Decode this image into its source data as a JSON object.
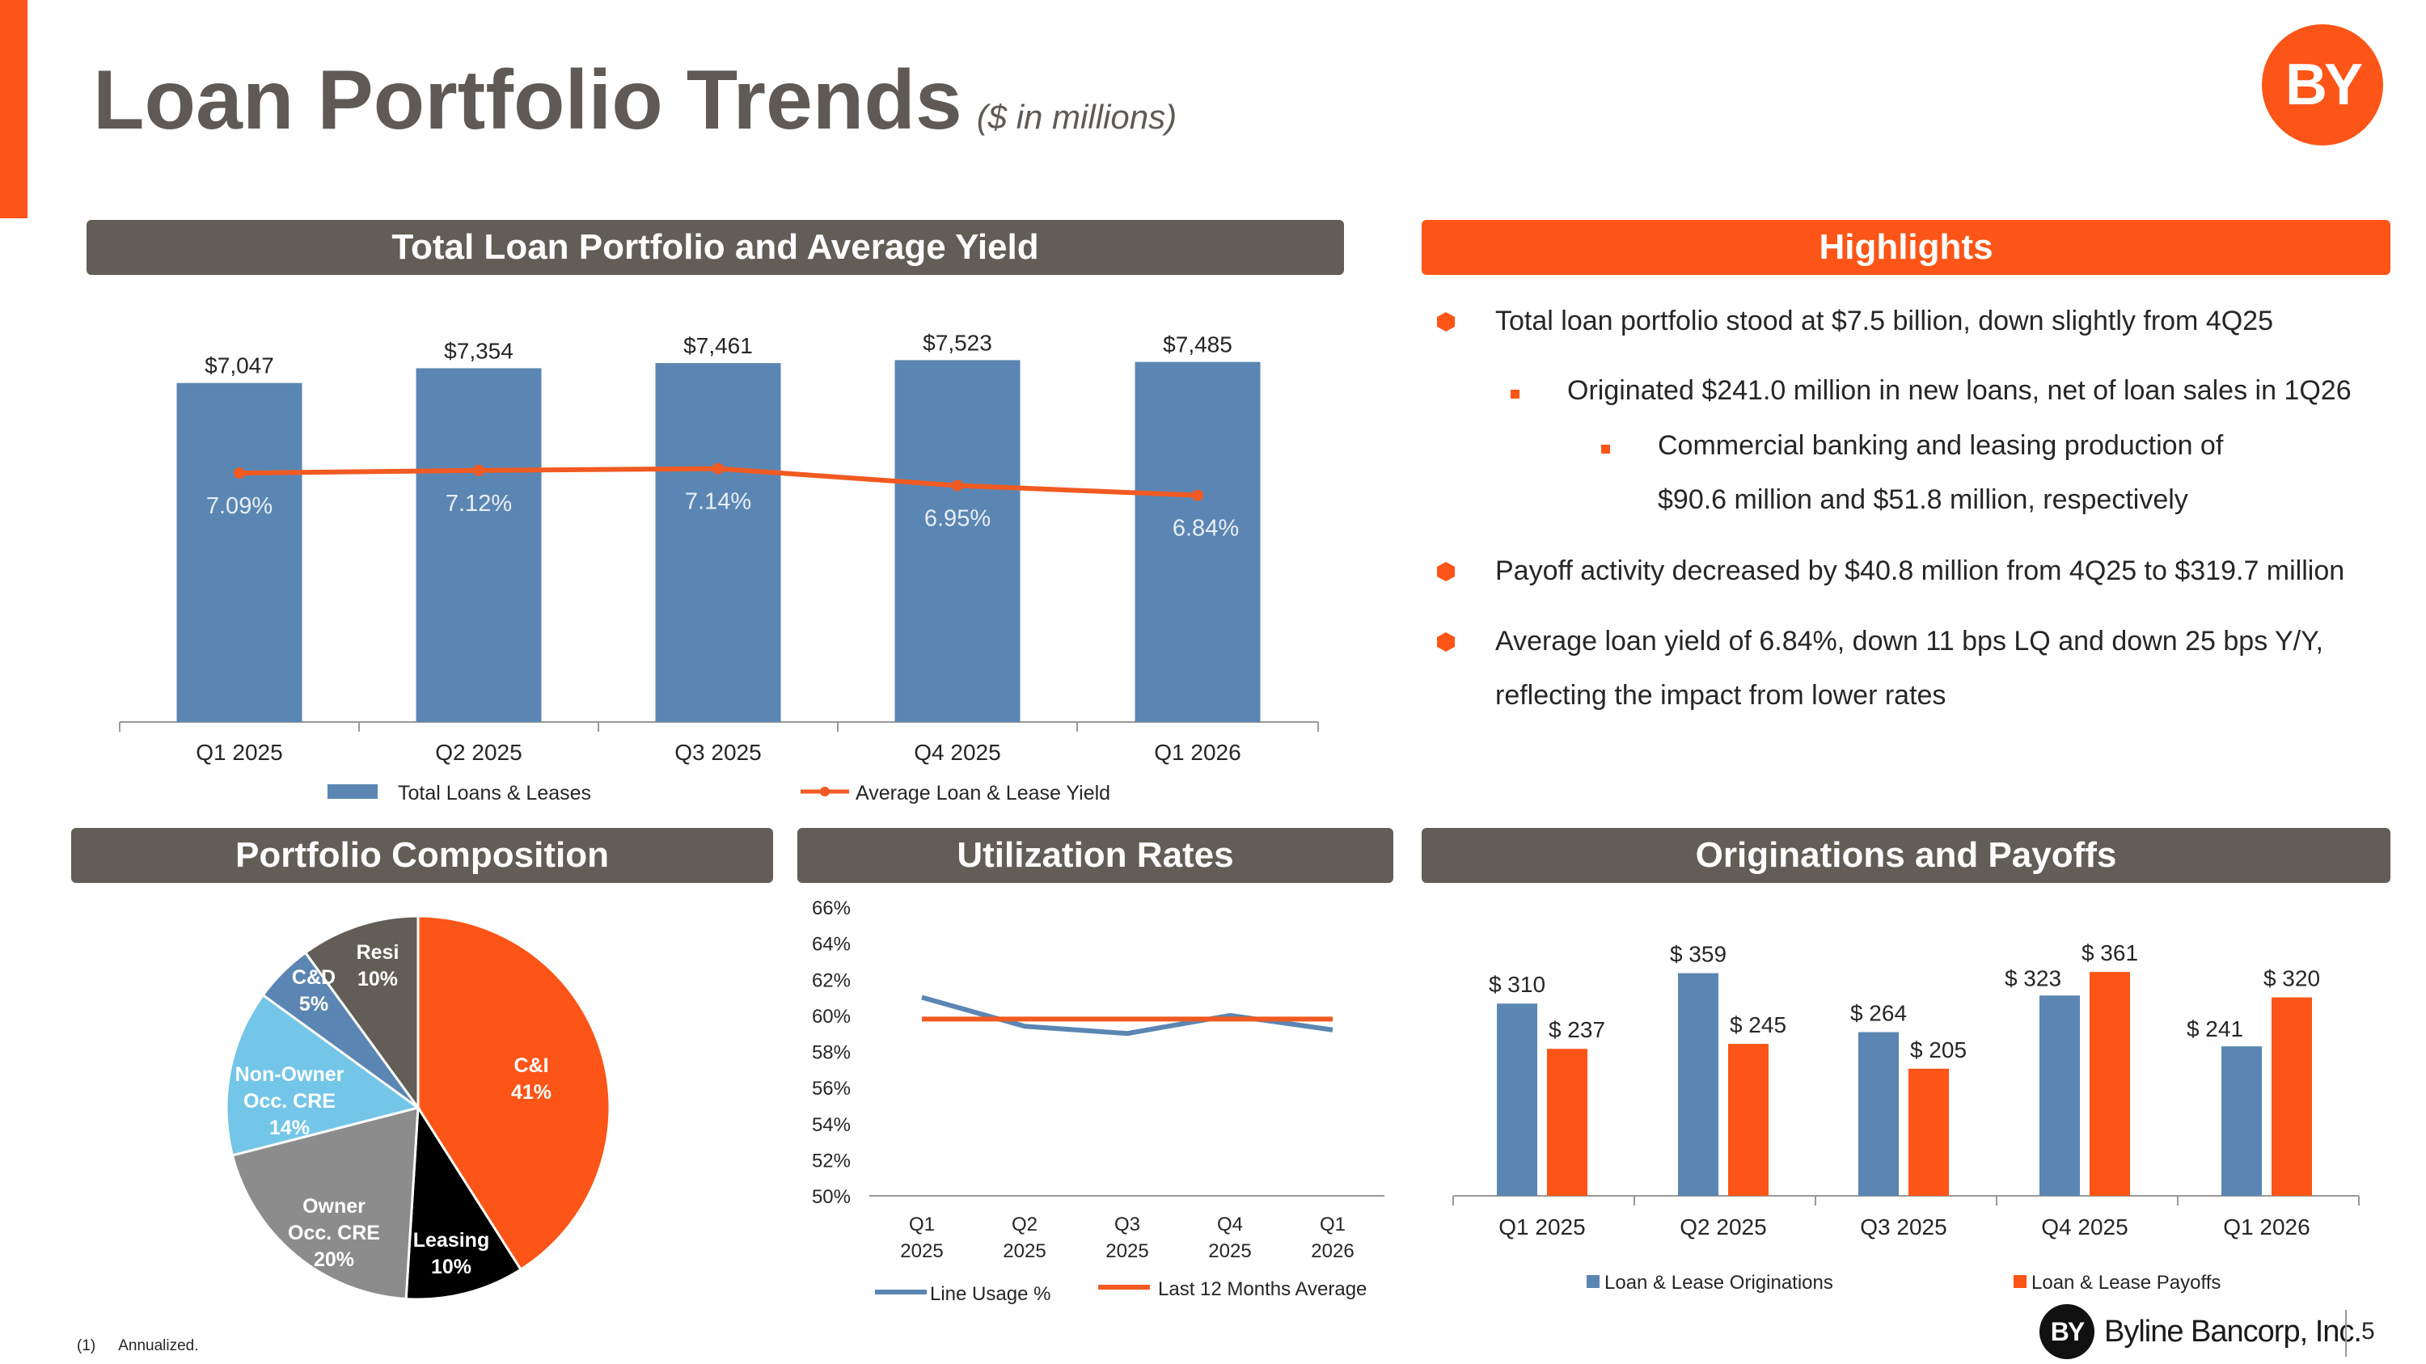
{
  "header": {
    "title": "Loan Portfolio Trends",
    "subtitle": "($ in millions)",
    "logo_text": "BY"
  },
  "sections": {
    "loan_portfolio": "Total Loan Portfolio and Average Yield",
    "highlights": "Highlights",
    "composition": "Portfolio Composition",
    "utilization": "Utilization Rates",
    "originations": "Originations and Payoffs"
  },
  "highlights": {
    "items": [
      {
        "level": 1,
        "text": "Total loan portfolio stood at $7.5 billion, down slightly from 4Q25"
      },
      {
        "level": 2,
        "text": "Originated $241.0 million in new loans, net of loan sales in 1Q26"
      },
      {
        "level": 3,
        "text": "Commercial banking and leasing production of"
      },
      {
        "level": 3,
        "text": "$90.6 million and $51.8 million, respectively",
        "continuation": true
      },
      {
        "level": 1,
        "text": "Payoff activity decreased by $40.8 million from 4Q25 to $319.7 million"
      },
      {
        "level": 1,
        "text": "Average loan yield of 6.84%, down 11 bps LQ and down 25 bps Y/Y,"
      },
      {
        "level": 1,
        "text": "reflecting the impact from lower rates",
        "continuation": true
      }
    ]
  },
  "footer": {
    "footnote_marker": "(1)",
    "footnote_text": "Annualized.",
    "company": "Byline Bancorp, Inc.",
    "logo_text": "BY",
    "page_number": "5"
  },
  "chart_data": [
    {
      "type": "bar",
      "name": "loan-portfolio",
      "categories": [
        "Q1 2025",
        "Q2 2025",
        "Q3 2025",
        "Q4 2025",
        "Q1 2026"
      ],
      "series": [
        {
          "name": "Total Loans & Leases",
          "type": "bar",
          "color": "#5b86b3",
          "values": [
            7047,
            7354,
            7461,
            7523,
            7485
          ],
          "labels": [
            "$7,047",
            "$7,354",
            "$7,461",
            "$7,523",
            "$7,485"
          ]
        },
        {
          "name": "Average Loan & Lease Yield",
          "type": "line",
          "color": "#f15a22",
          "values": [
            7.09,
            7.12,
            7.14,
            6.95,
            6.84
          ],
          "labels": [
            "7.09%",
            "7.12%",
            "7.14%",
            "6.95%",
            "6.84%"
          ]
        }
      ],
      "legend": "bottom"
    },
    {
      "type": "pie",
      "name": "portfolio-composition",
      "slices": [
        {
          "label": "C&I",
          "percent": 41,
          "color": "#fc5517",
          "text_color": "#ffffff"
        },
        {
          "label": "Leasing",
          "percent": 10,
          "color": "#000000",
          "text_color": "#ffffff"
        },
        {
          "label": "Owner Occ. CRE",
          "percent": 20,
          "color": "#8c8c8c",
          "text_color": "#ffffff"
        },
        {
          "label": "Non-Owner Occ. CRE",
          "percent": 14,
          "color": "#74c6e8",
          "text_color": "#ffffff"
        },
        {
          "label": "C&D",
          "percent": 5,
          "color": "#5b86b3",
          "text_color": "#ffffff"
        },
        {
          "label": "Resi",
          "percent": 10,
          "color": "#625d56",
          "text_color": "#ffffff"
        }
      ]
    },
    {
      "type": "line",
      "name": "utilization-rates",
      "categories": [
        "Q1 2025",
        "Q2 2025",
        "Q3 2025",
        "Q4 2025",
        "Q1 2026"
      ],
      "y_ticks": [
        "50%",
        "52%",
        "54%",
        "56%",
        "58%",
        "60%",
        "62%",
        "64%",
        "66%"
      ],
      "ylim": [
        50,
        66
      ],
      "series": [
        {
          "name": "Line Usage %",
          "color": "#5b86b3",
          "values": [
            61.0,
            59.4,
            59.0,
            60.0,
            59.2
          ]
        },
        {
          "name": "Last 12 Months Average",
          "color": "#f15a22",
          "values": [
            59.8,
            59.8,
            59.8,
            59.8,
            59.8
          ]
        }
      ],
      "legend": "bottom"
    },
    {
      "type": "bar",
      "name": "originations-payoffs",
      "categories": [
        "Q1 2025",
        "Q2 2025",
        "Q3 2025",
        "Q4 2025",
        "Q1 2026"
      ],
      "series": [
        {
          "name": "Loan & Lease Originations",
          "color": "#5b86b3",
          "values": [
            310,
            359,
            264,
            323,
            241
          ],
          "labels": [
            "$ 310",
            "$ 359",
            "$ 264",
            "$ 323",
            "$ 241"
          ]
        },
        {
          "name": "Loan & Lease Payoffs",
          "color": "#fc5517",
          "values": [
            237,
            245,
            205,
            361,
            320
          ],
          "labels": [
            "$ 237",
            "$ 245",
            "$ 205",
            "$ 361",
            "$ 320"
          ]
        }
      ],
      "legend": "bottom"
    }
  ]
}
